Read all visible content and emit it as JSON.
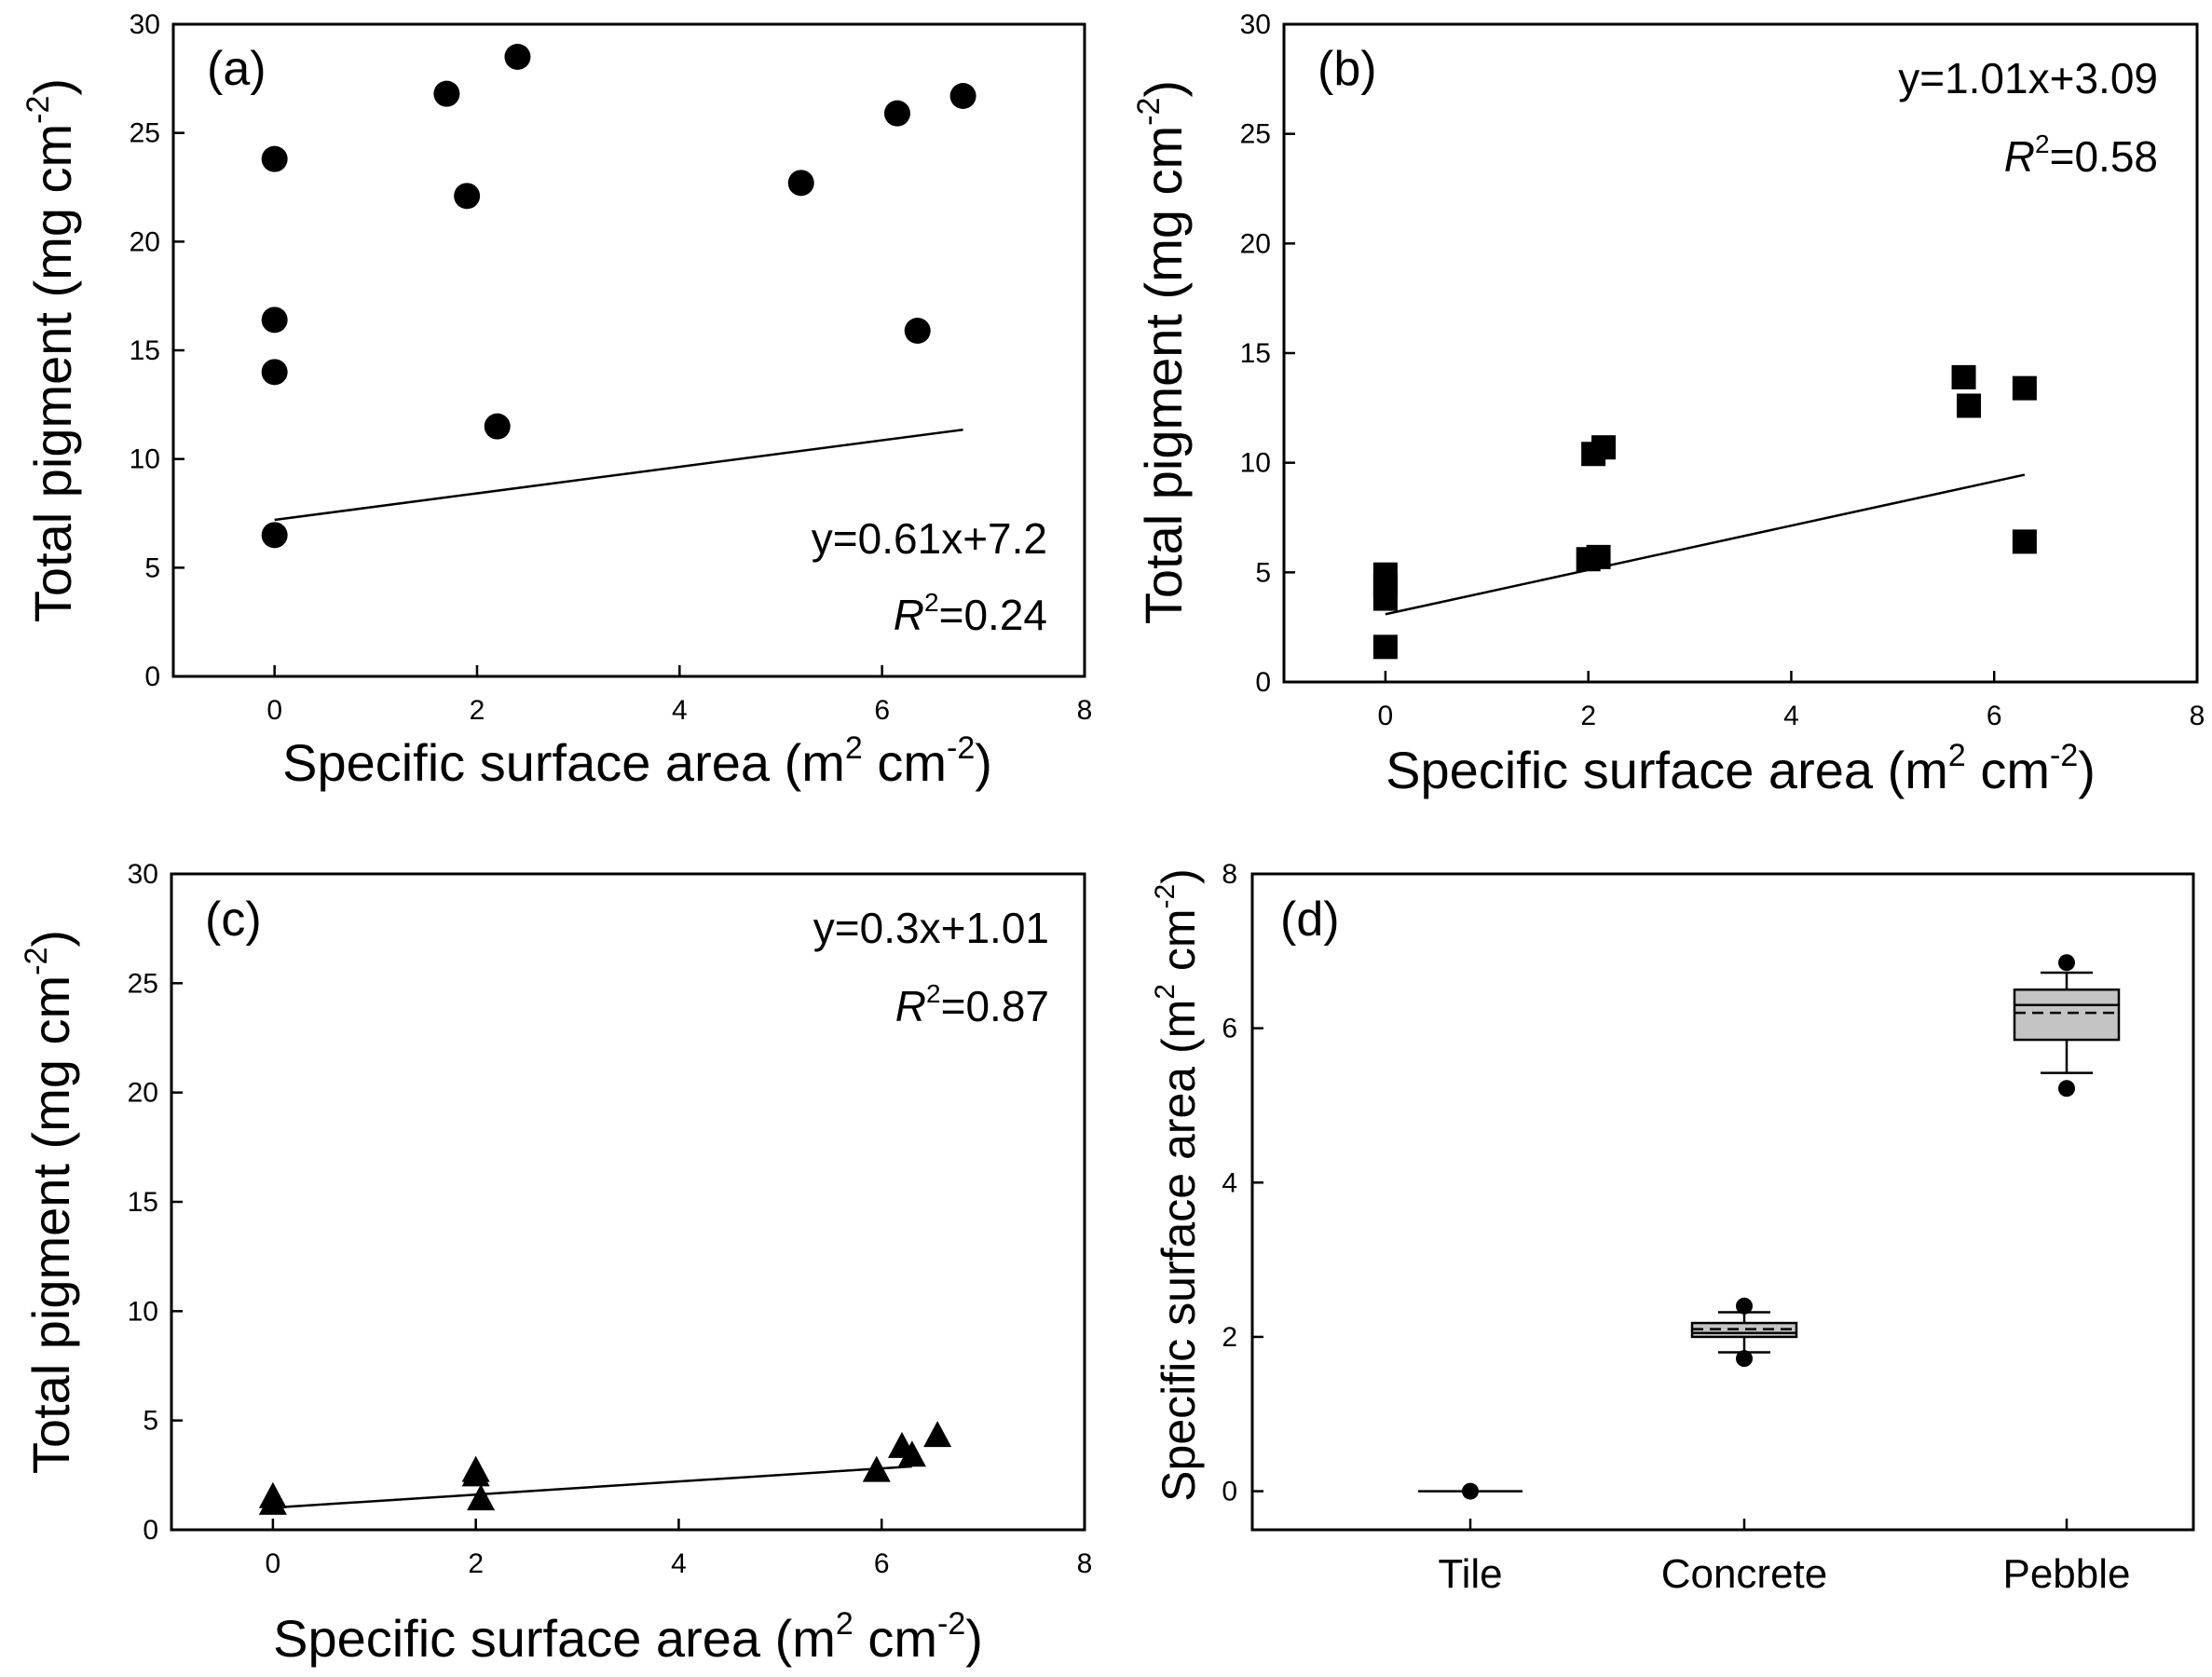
{
  "figure": {
    "panels": [
      "(a)",
      "(b)",
      "(c)",
      "(d)"
    ]
  },
  "chart_data": [
    {
      "id": "a",
      "type": "scatter",
      "panel_label": "(a)",
      "marker": "circle",
      "xlabel": "Specific surface area (m",
      "xlabel_sup1": "2",
      "xlabel_mid": " cm",
      "xlabel_sup2": "-2",
      "xlabel_end": ")",
      "ylabel": "Total pigment (mg cm",
      "ylabel_sup": "-2",
      "ylabel_end": ")",
      "xlim": [
        -1,
        8
      ],
      "ylim": [
        0,
        30
      ],
      "xticks": [
        "0",
        "2",
        "4",
        "6",
        "8"
      ],
      "yticks": [
        "0",
        "5",
        "10",
        "15",
        "20",
        "25",
        "30"
      ],
      "x": [
        0,
        0,
        0,
        0,
        1.7,
        1.9,
        2.2,
        2.4,
        5.2,
        6.15,
        6.35,
        6.8
      ],
      "y": [
        23.8,
        16.4,
        14.0,
        6.5,
        26.8,
        22.1,
        11.5,
        28.5,
        22.7,
        25.9,
        15.9,
        26.7
      ],
      "fit": {
        "slope": 0.61,
        "intercept": 7.2,
        "x_range": [
          0,
          6.8
        ]
      },
      "equation": "y=0.61x+7.2",
      "r2_label": "R",
      "r2_sup": "2",
      "r2_value": "=0.24"
    },
    {
      "id": "b",
      "type": "scatter",
      "panel_label": "(b)",
      "marker": "square",
      "xlabel": "Specific surface area (m",
      "xlabel_sup1": "2",
      "xlabel_mid": " cm",
      "xlabel_sup2": "-2",
      "xlabel_end": ")",
      "ylabel": "Total pigment (mg cm",
      "ylabel_sup": "-2",
      "ylabel_end": ")",
      "xlim": [
        -1,
        8
      ],
      "ylim": [
        0,
        30
      ],
      "xticks": [
        "0",
        "2",
        "4",
        "6",
        "8"
      ],
      "yticks": [
        "0",
        "5",
        "10",
        "15",
        "20",
        "25",
        "30"
      ],
      "x": [
        0,
        0,
        0,
        0,
        2.0,
        2.05,
        2.1,
        2.15,
        5.7,
        5.75,
        6.3,
        6.3
      ],
      "y": [
        4.9,
        4.4,
        3.8,
        1.6,
        5.6,
        10.4,
        5.7,
        10.7,
        13.9,
        12.6,
        13.4,
        6.4
      ],
      "fit": {
        "slope": 1.01,
        "intercept": 3.09,
        "x_range": [
          0,
          6.3
        ]
      },
      "equation": "y=1.01x+3.09",
      "r2_label": "R",
      "r2_sup": "2",
      "r2_value": "=0.58"
    },
    {
      "id": "c",
      "type": "scatter",
      "panel_label": "(c)",
      "marker": "triangle",
      "xlabel": "Specific surface area (m",
      "xlabel_sup1": "2",
      "xlabel_mid": " cm",
      "xlabel_sup2": "-2",
      "xlabel_end": ")",
      "ylabel": "Total pigment (mg cm",
      "ylabel_sup": "-2",
      "ylabel_end": ")",
      "xlim": [
        -1,
        8
      ],
      "ylim": [
        0,
        30
      ],
      "xticks": [
        "0",
        "2",
        "4",
        "6",
        "8"
      ],
      "yticks": [
        "0",
        "5",
        "10",
        "15",
        "20",
        "25",
        "30"
      ],
      "x": [
        0,
        0,
        2.0,
        2.0,
        2.05,
        5.95,
        6.2,
        6.3,
        6.55
      ],
      "y": [
        1.2,
        1.5,
        2.5,
        2.7,
        1.4,
        2.7,
        3.8,
        3.4,
        4.3
      ],
      "fit": {
        "slope": 0.3,
        "intercept": 1.01,
        "x_range": [
          0,
          6.3
        ]
      },
      "equation": "y=0.3x+1.01",
      "r2_label": "R",
      "r2_sup": "2",
      "r2_value": "=0.87"
    },
    {
      "id": "d",
      "type": "box",
      "panel_label": "(d)",
      "ylabel": "Specific surface area (m",
      "ylabel_sup1": "2",
      "ylabel_mid": " cm",
      "ylabel_sup2": "-2",
      "ylabel_end": ")",
      "ylim": [
        -0.5,
        8
      ],
      "yticks": [
        "0",
        "2",
        "4",
        "6",
        "8"
      ],
      "categories": [
        "Tile",
        "Concrete",
        "Pebble"
      ],
      "boxes": [
        {
          "category": "Tile",
          "q1": 0,
          "median": 0,
          "mean": 0,
          "q3": 0,
          "whisker_low": 0,
          "whisker_high": 0,
          "outliers": [
            0
          ]
        },
        {
          "category": "Concrete",
          "q1": 2.0,
          "median": 2.05,
          "mean": 2.1,
          "q3": 2.18,
          "whisker_low": 1.8,
          "whisker_high": 2.32,
          "outliers": [
            1.72,
            2.4
          ]
        },
        {
          "category": "Pebble",
          "q1": 5.85,
          "median": 6.3,
          "mean": 6.2,
          "q3": 6.5,
          "whisker_low": 5.42,
          "whisker_high": 6.72,
          "outliers": [
            5.22,
            6.85
          ]
        }
      ]
    }
  ]
}
